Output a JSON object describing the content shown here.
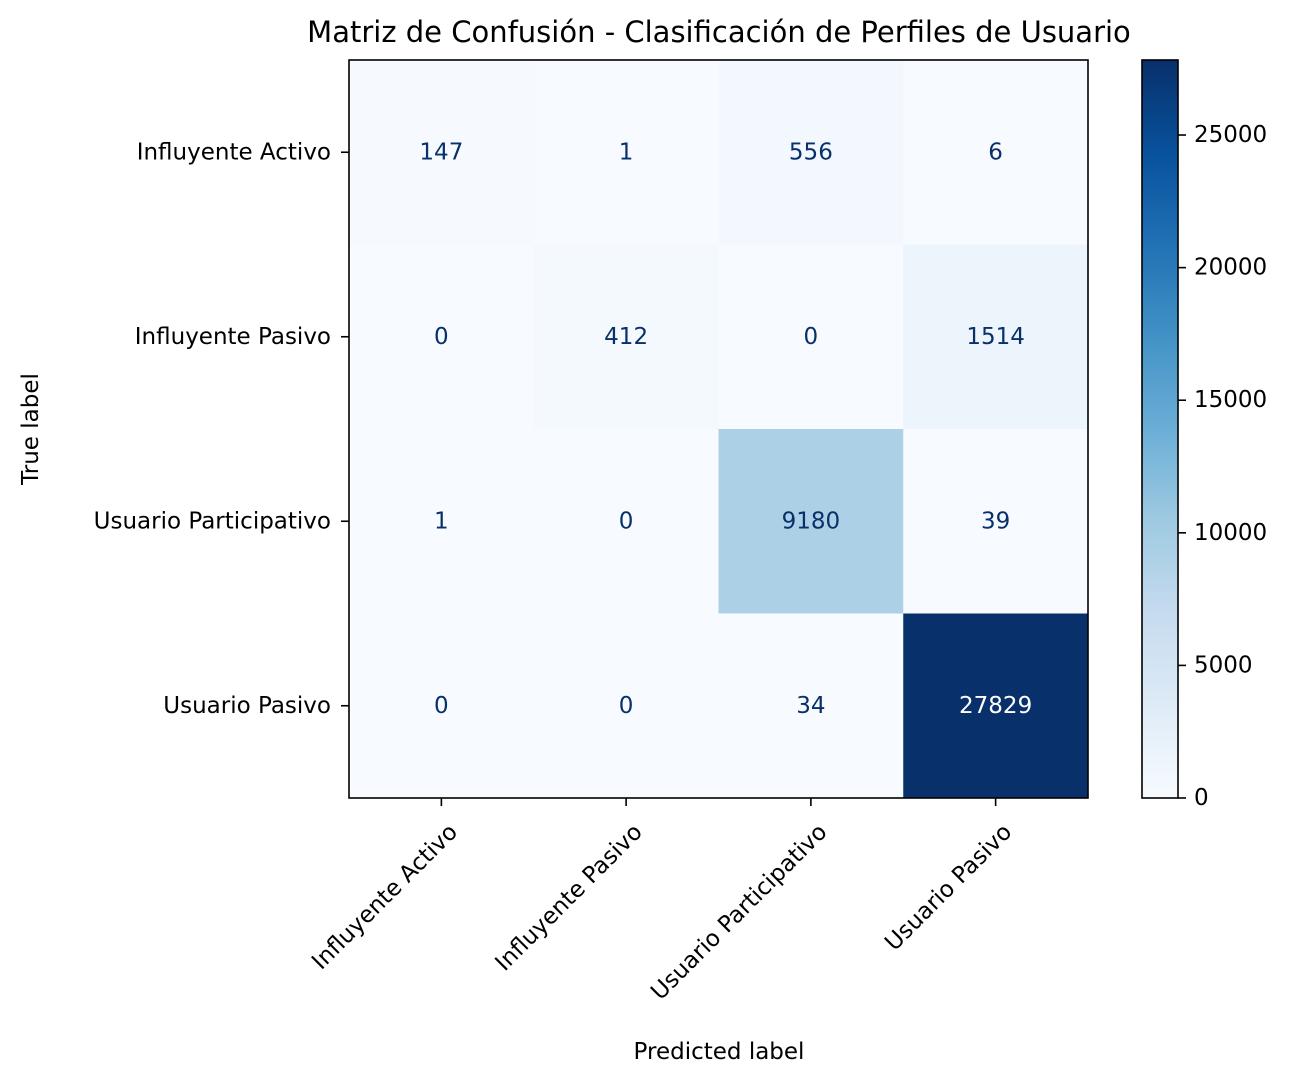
{
  "chart_data": {
    "type": "heatmap",
    "title": "Matriz de Confusión - Clasificación de Perfiles de Usuario",
    "xlabel": "Predicted label",
    "ylabel": "True label",
    "x_categories": [
      "Influyente Activo",
      "Influyente Pasivo",
      "Usuario Participativo",
      "Usuario Pasivo"
    ],
    "y_categories": [
      "Influyente Activo",
      "Influyente Pasivo",
      "Usuario Participativo",
      "Usuario Pasivo"
    ],
    "values": [
      [
        147,
        1,
        556,
        6
      ],
      [
        0,
        412,
        0,
        1514
      ],
      [
        1,
        0,
        9180,
        39
      ],
      [
        0,
        0,
        34,
        27829
      ]
    ],
    "colormap": "Blues",
    "colorbar": {
      "min": 0,
      "max": 27829,
      "ticks": [
        0,
        5000,
        10000,
        15000,
        20000,
        25000
      ],
      "tick_labels": [
        "0",
        "5000",
        "10000",
        "15000",
        "20000",
        "25000"
      ]
    },
    "text_colors": {
      "light": "#ffffff",
      "dark": "#08306b"
    }
  }
}
